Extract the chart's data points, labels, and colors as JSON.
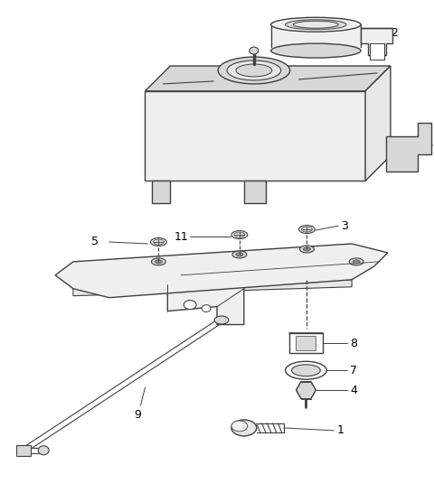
{
  "background_color": "#ffffff",
  "line_color": "#404040",
  "text_color": "#000000",
  "fig_width": 4.8,
  "fig_height": 5.35,
  "dpi": 100
}
